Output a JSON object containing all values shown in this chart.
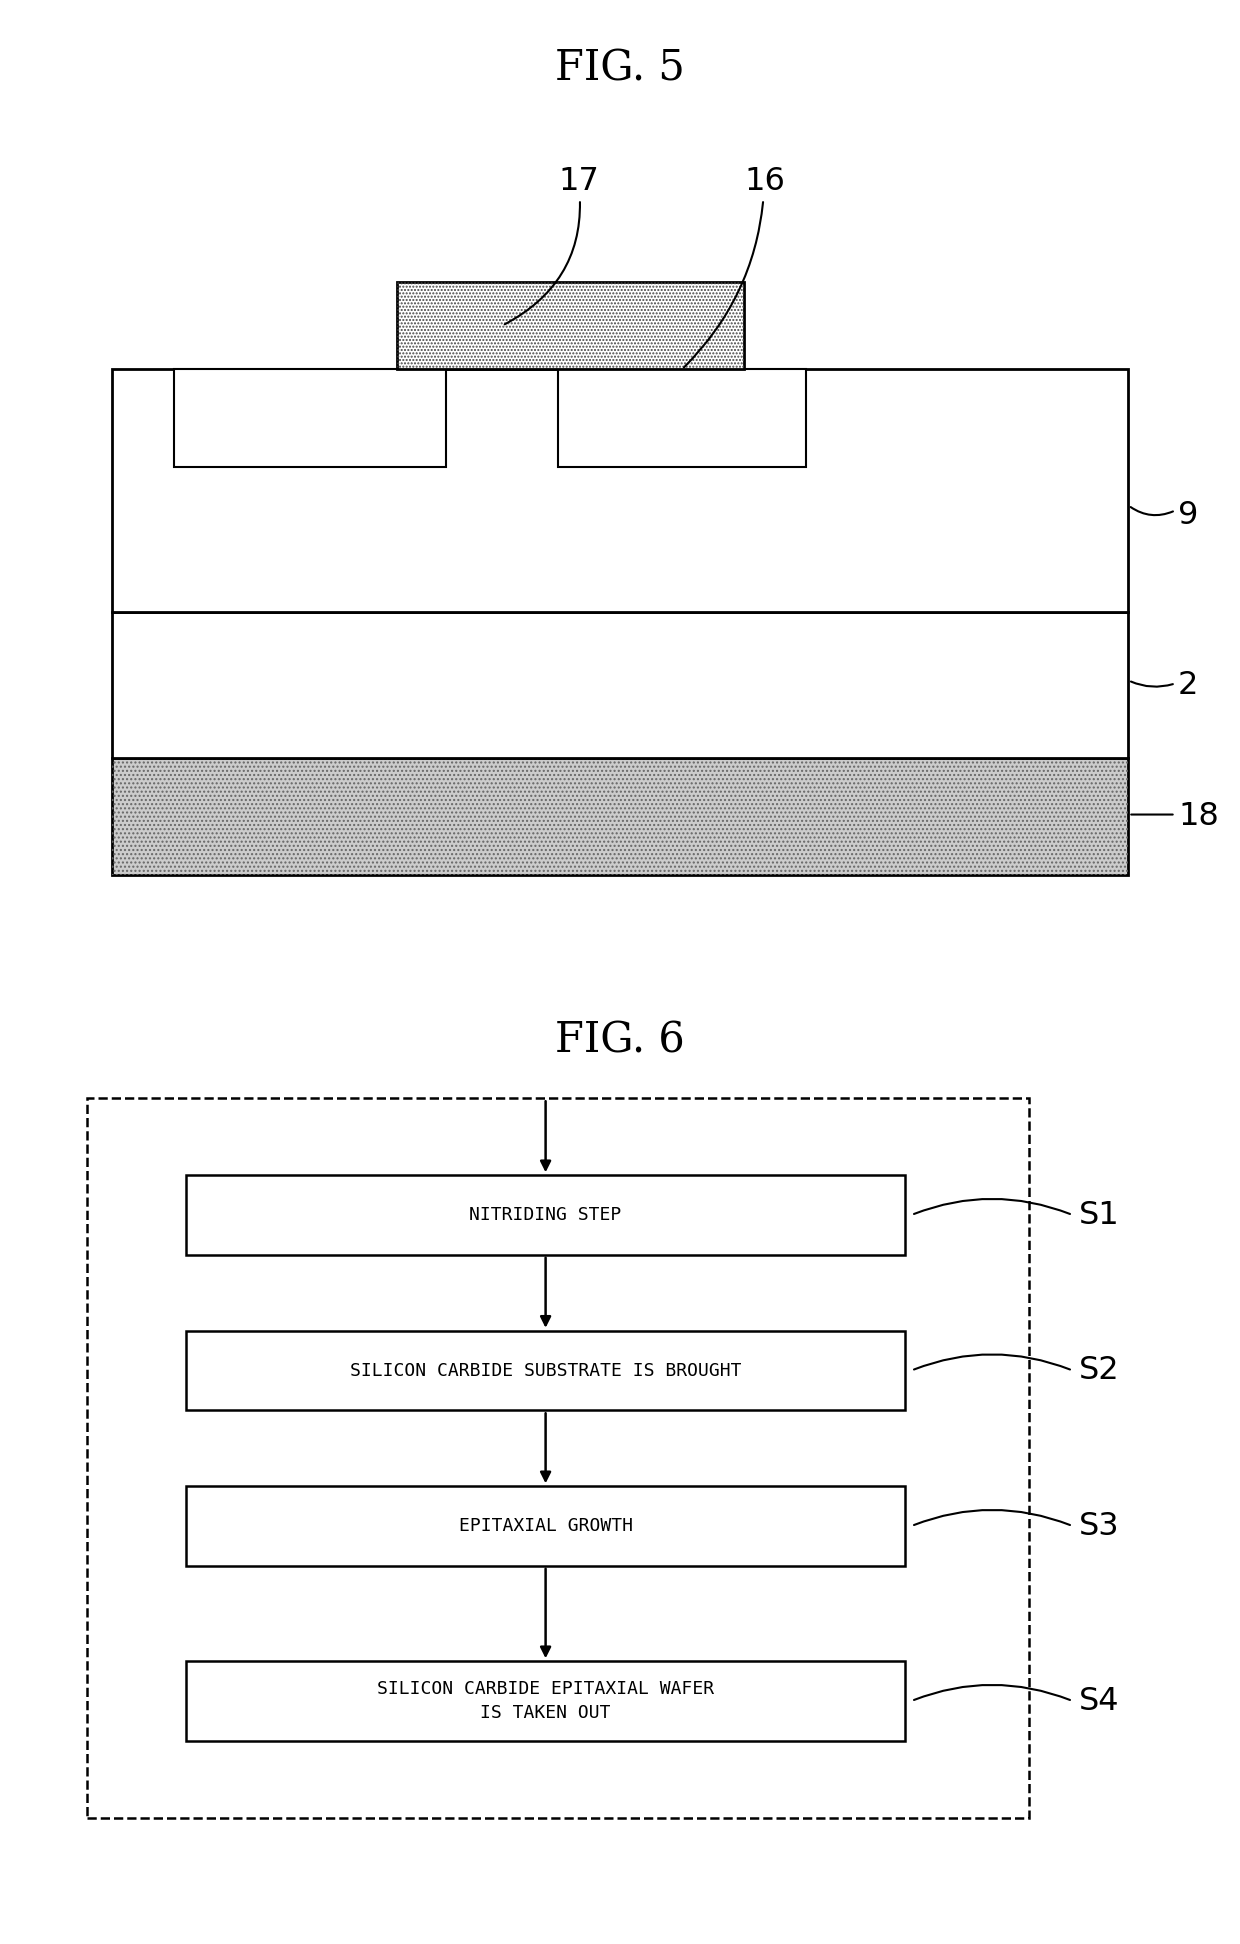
{
  "fig5_title": "FIG. 5",
  "fig6_title": "FIG. 6",
  "background_color": "#ffffff",
  "line_color": "#000000",
  "flow_steps": [
    "NITRIDING STEP",
    "SILICON CARBIDE SUBSTRATE IS BROUGHT",
    "EPITAXIAL GROWTH",
    "SILICON CARBIDE EPITAXIAL WAFER\nIS TAKEN OUT"
  ],
  "flow_labels": [
    "S1",
    "S2",
    "S3",
    "S4"
  ]
}
